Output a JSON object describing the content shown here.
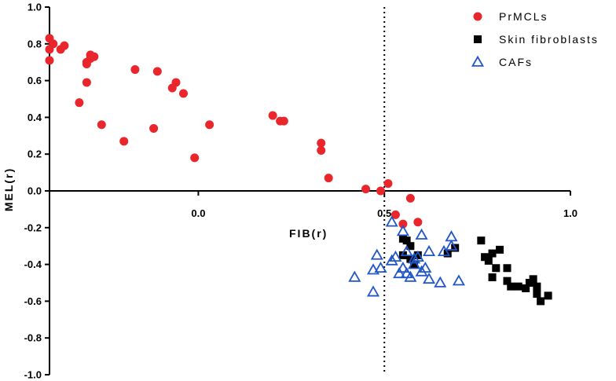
{
  "chart_data": {
    "type": "scatter",
    "title": "",
    "xlabel": "FIB(r)",
    "ylabel": "MEL(r)",
    "xlim": [
      -0.4,
      1.0
    ],
    "ylim": [
      -1.0,
      1.0
    ],
    "x_ticks": [
      0.0,
      0.5,
      1.0
    ],
    "x_tick_labels": [
      "0.0",
      "0.5",
      "1.0"
    ],
    "y_ticks": [
      1.0,
      0.8,
      0.6,
      0.4,
      0.2,
      0.0,
      -0.2,
      -0.4,
      -0.6,
      -0.8,
      -1.0
    ],
    "y_tick_labels": [
      "1.0",
      "0.8",
      "0.6",
      "0.4",
      "0.2",
      "0.0",
      "-0.2",
      "-0.4",
      "-0.6",
      "-0.8",
      "-1.0"
    ],
    "reference_line": {
      "axis": "x",
      "value": 0.5,
      "style": "dotted"
    },
    "grid": false,
    "legend_position": "top-right",
    "series": [
      {
        "name": "PrMCLs",
        "marker": "circle",
        "color": "#e8262b",
        "points": [
          [
            -0.4,
            0.83
          ],
          [
            -0.39,
            0.8
          ],
          [
            -0.4,
            0.77
          ],
          [
            -0.4,
            0.71
          ],
          [
            -0.37,
            0.77
          ],
          [
            -0.36,
            0.79
          ],
          [
            -0.29,
            0.74
          ],
          [
            -0.29,
            0.72
          ],
          [
            -0.3,
            0.7
          ],
          [
            -0.3,
            0.69
          ],
          [
            -0.28,
            0.73
          ],
          [
            -0.3,
            0.59
          ],
          [
            -0.32,
            0.48
          ],
          [
            -0.26,
            0.36
          ],
          [
            -0.17,
            0.66
          ],
          [
            -0.11,
            0.65
          ],
          [
            -0.06,
            0.59
          ],
          [
            -0.07,
            0.56
          ],
          [
            -0.04,
            0.53
          ],
          [
            -0.2,
            0.27
          ],
          [
            -0.12,
            0.34
          ],
          [
            0.03,
            0.36
          ],
          [
            -0.01,
            0.18
          ],
          [
            0.2,
            0.41
          ],
          [
            0.22,
            0.38
          ],
          [
            0.23,
            0.38
          ],
          [
            0.33,
            0.26
          ],
          [
            0.33,
            0.22
          ],
          [
            0.35,
            0.07
          ],
          [
            0.45,
            0.01
          ],
          [
            0.49,
            0.0
          ],
          [
            0.51,
            0.04
          ],
          [
            0.53,
            -0.13
          ],
          [
            0.55,
            -0.18
          ],
          [
            0.57,
            -0.04
          ],
          [
            0.59,
            -0.17
          ]
        ]
      },
      {
        "name": "Skin fibroblasts",
        "marker": "square",
        "color": "#000000",
        "points": [
          [
            0.55,
            -0.26
          ],
          [
            0.56,
            -0.27
          ],
          [
            0.57,
            -0.3
          ],
          [
            0.55,
            -0.35
          ],
          [
            0.57,
            -0.37
          ],
          [
            0.59,
            -0.35
          ],
          [
            0.58,
            -0.4
          ],
          [
            0.69,
            -0.31
          ],
          [
            0.67,
            -0.34
          ],
          [
            0.76,
            -0.27
          ],
          [
            0.77,
            -0.36
          ],
          [
            0.78,
            -0.38
          ],
          [
            0.79,
            -0.34
          ],
          [
            0.81,
            -0.32
          ],
          [
            0.8,
            -0.42
          ],
          [
            0.83,
            -0.42
          ],
          [
            0.79,
            -0.47
          ],
          [
            0.83,
            -0.49
          ],
          [
            0.84,
            -0.52
          ],
          [
            0.86,
            -0.52
          ],
          [
            0.88,
            -0.53
          ],
          [
            0.89,
            -0.5
          ],
          [
            0.9,
            -0.48
          ],
          [
            0.91,
            -0.52
          ],
          [
            0.91,
            -0.56
          ],
          [
            0.92,
            -0.6
          ],
          [
            0.94,
            -0.57
          ]
        ]
      },
      {
        "name": "CAFs",
        "marker": "triangle-open",
        "color": "#2056c8",
        "points": [
          [
            0.52,
            -0.17
          ],
          [
            0.55,
            -0.22
          ],
          [
            0.6,
            -0.24
          ],
          [
            0.68,
            -0.25
          ],
          [
            0.68,
            -0.3
          ],
          [
            0.48,
            -0.35
          ],
          [
            0.52,
            -0.38
          ],
          [
            0.56,
            -0.33
          ],
          [
            0.59,
            -0.36
          ],
          [
            0.62,
            -0.33
          ],
          [
            0.66,
            -0.33
          ],
          [
            0.58,
            -0.4
          ],
          [
            0.55,
            -0.42
          ],
          [
            0.56,
            -0.45
          ],
          [
            0.54,
            -0.45
          ],
          [
            0.57,
            -0.47
          ],
          [
            0.6,
            -0.44
          ],
          [
            0.62,
            -0.48
          ],
          [
            0.65,
            -0.5
          ],
          [
            0.7,
            -0.49
          ],
          [
            0.47,
            -0.43
          ],
          [
            0.49,
            -0.42
          ],
          [
            0.42,
            -0.47
          ],
          [
            0.47,
            -0.55
          ],
          [
            0.53,
            -0.36
          ],
          [
            0.58,
            -0.37
          ],
          [
            0.61,
            -0.42
          ]
        ]
      }
    ]
  }
}
